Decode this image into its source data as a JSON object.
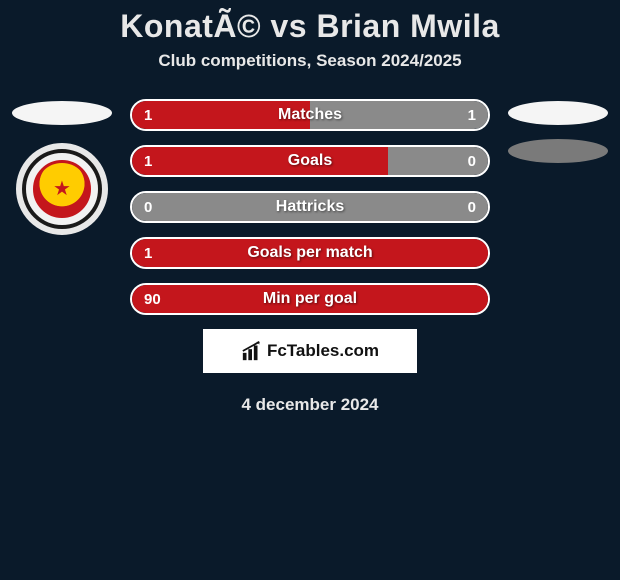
{
  "colors": {
    "page_bg": "#0a1a2a",
    "accent_red": "#c4161c",
    "bar_gray": "#8a8a8a",
    "bar_border": "#ffffff",
    "ellipse_light": "#f5f5f5",
    "ellipse_gray": "#7a7a7a",
    "text_light": "#e8e8e8",
    "badge_yellow": "#ffcc00"
  },
  "header": {
    "title": "KonatÃ© vs Brian Mwila",
    "subtitle": "Club competitions, Season 2024/2025"
  },
  "stats": [
    {
      "label": "Matches",
      "left_val": "1",
      "right_val": "1",
      "left_pct": 50,
      "right_pct": 50,
      "left_color": "#c4161c",
      "right_color": "#8a8a8a"
    },
    {
      "label": "Goals",
      "left_val": "1",
      "right_val": "0",
      "left_pct": 72,
      "right_pct": 28,
      "left_color": "#c4161c",
      "right_color": "#8a8a8a"
    },
    {
      "label": "Hattricks",
      "left_val": "0",
      "right_val": "0",
      "left_pct": 50,
      "right_pct": 50,
      "left_color": "#8a8a8a",
      "right_color": "#8a8a8a"
    },
    {
      "label": "Goals per match",
      "left_val": "1",
      "right_val": "",
      "left_pct": 100,
      "right_pct": 0,
      "left_color": "#c4161c",
      "right_color": "#8a8a8a"
    },
    {
      "label": "Min per goal",
      "left_val": "90",
      "right_val": "",
      "left_pct": 100,
      "right_pct": 0,
      "left_color": "#c4161c",
      "right_color": "#8a8a8a"
    }
  ],
  "footer": {
    "brand": "FcTables.com",
    "date": "4 december 2024"
  }
}
